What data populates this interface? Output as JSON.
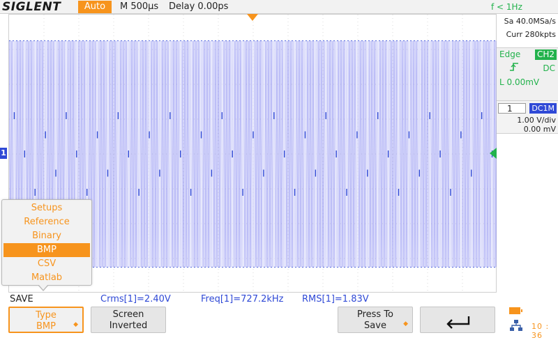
{
  "header": {
    "brand": "SIGLENT",
    "trigger_mode": "Auto",
    "timebase": "M 500µs",
    "delay": "Delay 0.00ps",
    "frequency_counter": "f < 1Hz"
  },
  "acquisition": {
    "sample_rate": "Sa 40.0MSa/s",
    "memory_depth": "Curr 280kpts"
  },
  "trigger": {
    "type": "Edge",
    "source": "CH2",
    "slope_icon": "rising-edge-icon",
    "coupling": "DC",
    "level": "L  0.00mV"
  },
  "channel1": {
    "number": "1",
    "coupling": "DC1M",
    "scale": "1.00 V/div",
    "offset": "0.00 mV",
    "ground_marker": "1",
    "color": "#2f49d6"
  },
  "waveform": {
    "color": "#8a8cf0",
    "envelope_top_div": 3.25,
    "envelope_bottom_div": -3.25,
    "burst_count": 47
  },
  "save_menu": {
    "items": [
      {
        "label": "Setups",
        "selected": false
      },
      {
        "label": "Reference",
        "selected": false
      },
      {
        "label": "Binary",
        "selected": false
      },
      {
        "label": "BMP",
        "selected": true
      },
      {
        "label": "CSV",
        "selected": false
      },
      {
        "label": "Matlab",
        "selected": false
      }
    ]
  },
  "menu_title": "SAVE",
  "measurements": {
    "crms": "Crms[1]=2.40V",
    "freq": "Freq[1]=727.2kHz",
    "rms": "RMS[1]=1.83V"
  },
  "softkeys": {
    "type_line1": "Type",
    "type_line2": "BMP",
    "screen_line1": "Screen",
    "screen_line2": "Inverted",
    "save_line1": "Press To",
    "save_line2": "Save",
    "back_icon": "return-arrow-icon"
  },
  "status": {
    "clock": "10 : 36",
    "battery_icon": "battery-icon",
    "network_icon": "network-icon"
  },
  "colors": {
    "accent": "#f7941d",
    "trigger": "#22b24c",
    "channel1": "#2f49d6"
  }
}
